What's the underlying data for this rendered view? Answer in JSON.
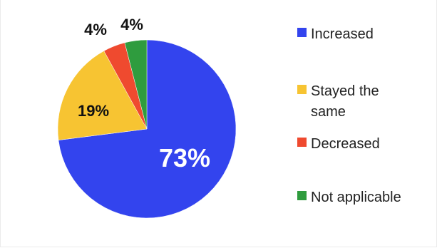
{
  "chart_data": {
    "type": "pie",
    "title": "",
    "slices": [
      {
        "label": "Increased",
        "value": 73,
        "display": "73%",
        "color": "#3344ee"
      },
      {
        "label": "Stayed the same",
        "value": 19,
        "display": "19%",
        "color": "#f7c432"
      },
      {
        "label": "Decreased",
        "value": 4,
        "display": "4%",
        "color": "#ef4a2f"
      },
      {
        "label": "Not applicable",
        "value": 4,
        "display": "4%",
        "color": "#2f9c3e"
      }
    ],
    "start_angle_deg": 0,
    "direction": "clockwise",
    "legend_position": "right"
  }
}
